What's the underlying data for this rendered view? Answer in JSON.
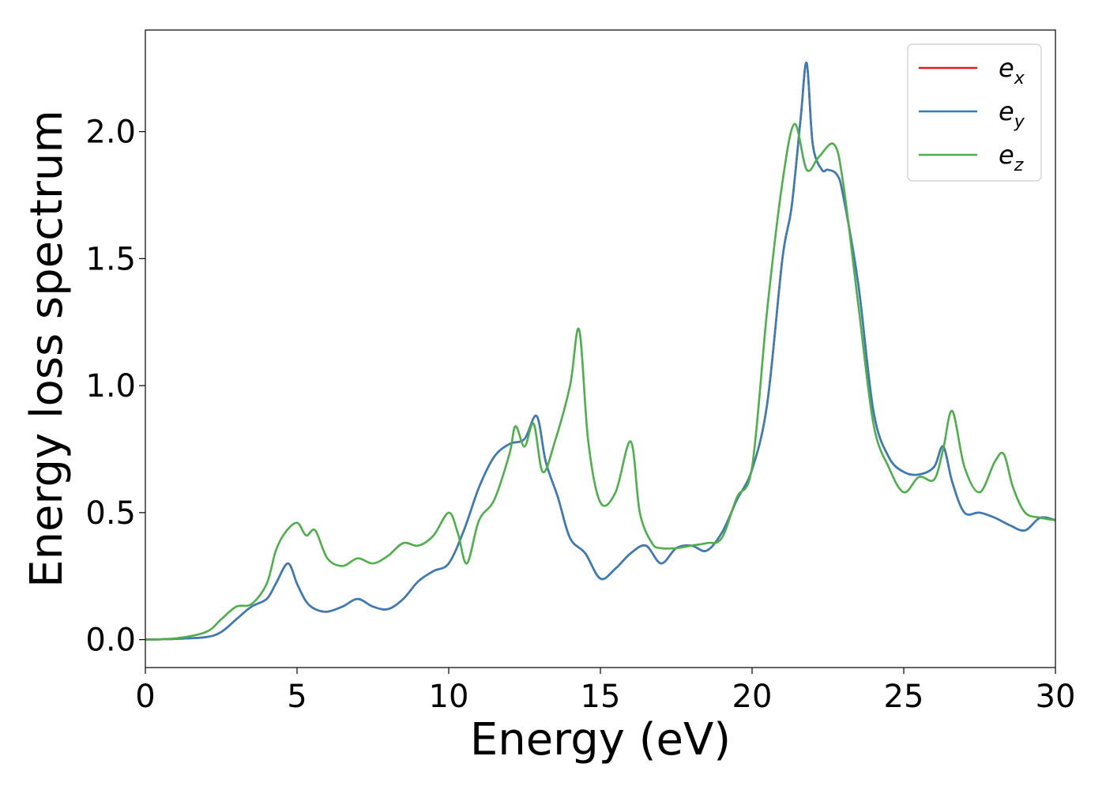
{
  "chart_data": {
    "type": "line",
    "xlabel": "Energy (eV)",
    "ylabel": "Energy loss spectrum",
    "xlim": [
      0,
      30
    ],
    "ylim": [
      -0.11,
      2.4
    ],
    "xticks": [
      0,
      5,
      10,
      15,
      20,
      25,
      30
    ],
    "xtick_labels": [
      "0",
      "5",
      "10",
      "15",
      "20",
      "25",
      "30"
    ],
    "yticks": [
      0.0,
      0.5,
      1.0,
      1.5,
      2.0
    ],
    "ytick_labels": [
      "0.0",
      "0.5",
      "1.0",
      "1.5",
      "2.0"
    ],
    "grid": false,
    "legend_position": "top-right",
    "series": [
      {
        "name": "e_x",
        "legend_base": "e",
        "legend_sub": "x",
        "color": "#e41a1c",
        "x": [
          0,
          1,
          2,
          2.5,
          3,
          3.5,
          4,
          4.3,
          4.7,
          5,
          5.3,
          5.6,
          6,
          6.5,
          7,
          7.5,
          8,
          8.5,
          9,
          9.5,
          10,
          10.5,
          11,
          11.5,
          12,
          12.5,
          12.9,
          13.2,
          13.6,
          14,
          14.5,
          15,
          15.5,
          16,
          16.5,
          17,
          17.5,
          18,
          18.5,
          19,
          19.5,
          20,
          20.5,
          21,
          21.3,
          21.6,
          21.8,
          22,
          22.3,
          22.5,
          22.8,
          23,
          23.5,
          24,
          24.5,
          25,
          25.5,
          26,
          26.3,
          26.6,
          27,
          27.5,
          28,
          28.5,
          29,
          29.5,
          30
        ],
        "y": [
          0.0,
          0.003,
          0.01,
          0.03,
          0.08,
          0.13,
          0.16,
          0.22,
          0.3,
          0.22,
          0.15,
          0.12,
          0.11,
          0.13,
          0.16,
          0.13,
          0.12,
          0.16,
          0.23,
          0.27,
          0.3,
          0.43,
          0.6,
          0.72,
          0.77,
          0.79,
          0.88,
          0.7,
          0.56,
          0.4,
          0.34,
          0.24,
          0.28,
          0.34,
          0.37,
          0.3,
          0.36,
          0.37,
          0.35,
          0.42,
          0.55,
          0.67,
          0.93,
          1.5,
          1.7,
          2.05,
          2.27,
          1.95,
          1.85,
          1.85,
          1.83,
          1.75,
          1.4,
          0.9,
          0.72,
          0.66,
          0.65,
          0.68,
          0.76,
          0.62,
          0.5,
          0.5,
          0.48,
          0.45,
          0.43,
          0.48,
          0.47
        ]
      },
      {
        "name": "e_y",
        "legend_base": "e",
        "legend_sub": "y",
        "color": "#377eb8",
        "x": [
          0,
          1,
          2,
          2.5,
          3,
          3.5,
          4,
          4.3,
          4.7,
          5,
          5.3,
          5.6,
          6,
          6.5,
          7,
          7.5,
          8,
          8.5,
          9,
          9.5,
          10,
          10.5,
          11,
          11.5,
          12,
          12.5,
          12.9,
          13.2,
          13.6,
          14,
          14.5,
          15,
          15.5,
          16,
          16.5,
          17,
          17.5,
          18,
          18.5,
          19,
          19.5,
          20,
          20.5,
          21,
          21.3,
          21.6,
          21.8,
          22,
          22.3,
          22.5,
          22.8,
          23,
          23.5,
          24,
          24.5,
          25,
          25.5,
          26,
          26.3,
          26.6,
          27,
          27.5,
          28,
          28.5,
          29,
          29.5,
          30
        ],
        "y": [
          0.0,
          0.003,
          0.01,
          0.03,
          0.08,
          0.13,
          0.16,
          0.22,
          0.3,
          0.22,
          0.15,
          0.12,
          0.11,
          0.13,
          0.16,
          0.13,
          0.12,
          0.16,
          0.23,
          0.27,
          0.3,
          0.43,
          0.6,
          0.72,
          0.77,
          0.79,
          0.88,
          0.7,
          0.56,
          0.4,
          0.34,
          0.24,
          0.28,
          0.34,
          0.37,
          0.3,
          0.36,
          0.37,
          0.35,
          0.42,
          0.55,
          0.67,
          0.93,
          1.5,
          1.7,
          2.05,
          2.27,
          1.95,
          1.85,
          1.85,
          1.83,
          1.75,
          1.4,
          0.9,
          0.72,
          0.66,
          0.65,
          0.68,
          0.76,
          0.62,
          0.5,
          0.5,
          0.48,
          0.45,
          0.43,
          0.48,
          0.47
        ]
      },
      {
        "name": "e_z",
        "legend_base": "e",
        "legend_sub": "z",
        "color": "#4daf4a",
        "x": [
          0,
          1,
          2,
          2.5,
          3,
          3.5,
          4,
          4.3,
          4.6,
          5,
          5.3,
          5.6,
          6,
          6.5,
          7,
          7.5,
          8,
          8.5,
          9,
          9.5,
          10,
          10.3,
          10.6,
          11,
          11.5,
          12,
          12.2,
          12.5,
          12.8,
          13.1,
          13.5,
          14,
          14.3,
          14.6,
          15,
          15.5,
          16,
          16.3,
          16.7,
          17,
          17.5,
          18,
          18.5,
          19,
          19.5,
          20,
          20.5,
          21,
          21.4,
          21.8,
          22.2,
          22.7,
          23,
          23.5,
          24,
          24.5,
          25,
          25.5,
          26,
          26.3,
          26.6,
          27,
          27.5,
          28,
          28.3,
          28.6,
          29,
          29.5,
          30
        ],
        "y": [
          0.0,
          0.005,
          0.03,
          0.08,
          0.13,
          0.14,
          0.22,
          0.35,
          0.42,
          0.46,
          0.41,
          0.43,
          0.32,
          0.29,
          0.32,
          0.3,
          0.33,
          0.38,
          0.37,
          0.41,
          0.5,
          0.42,
          0.3,
          0.47,
          0.55,
          0.73,
          0.84,
          0.76,
          0.85,
          0.66,
          0.78,
          1.0,
          1.22,
          0.78,
          0.54,
          0.58,
          0.78,
          0.5,
          0.38,
          0.36,
          0.36,
          0.37,
          0.38,
          0.4,
          0.56,
          0.68,
          1.3,
          1.8,
          2.03,
          1.85,
          1.9,
          1.95,
          1.8,
          1.32,
          0.85,
          0.68,
          0.58,
          0.64,
          0.63,
          0.75,
          0.9,
          0.68,
          0.58,
          0.7,
          0.73,
          0.6,
          0.5,
          0.48,
          0.47
        ]
      }
    ]
  }
}
